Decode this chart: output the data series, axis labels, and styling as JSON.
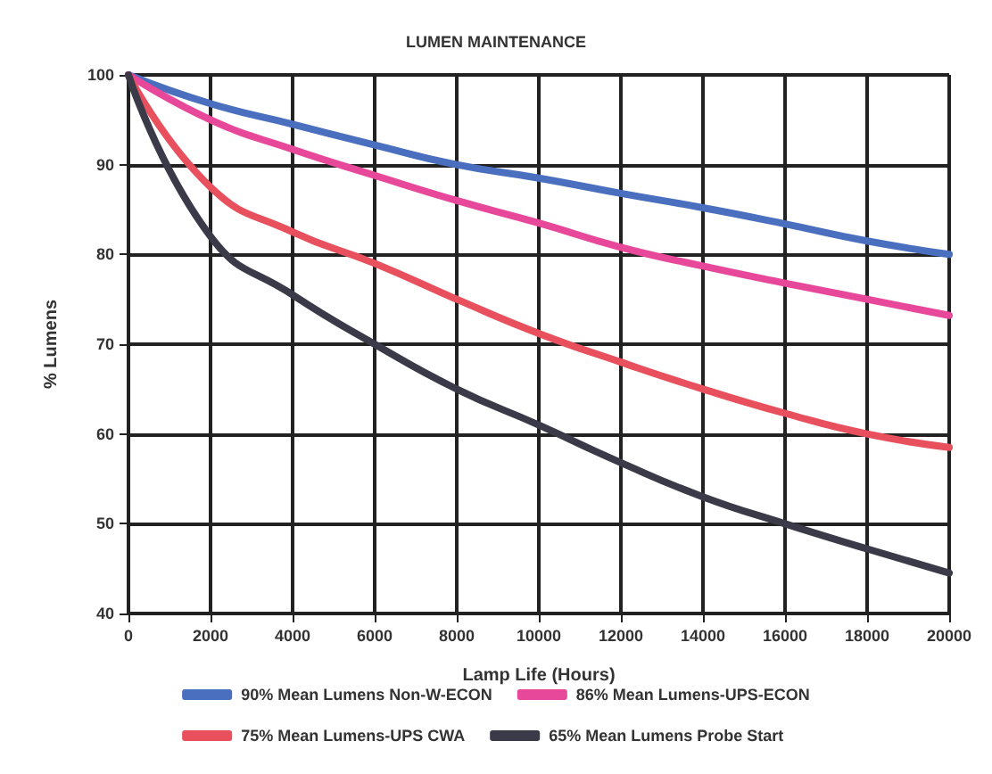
{
  "chart_data": {
    "type": "line",
    "title": "LUMEN MAINTENANCE",
    "xlabel": "Lamp Life (Hours)",
    "ylabel": "% Lumens",
    "x": [
      0,
      2000,
      4000,
      6000,
      8000,
      10000,
      12000,
      14000,
      16000,
      18000,
      20000
    ],
    "series": [
      {
        "name": "90% Mean Lumens Non-W-ECON",
        "color": "#4a6fbf",
        "values": [
          100,
          96.8,
          94.5,
          92.2,
          90,
          88.5,
          86.8,
          85.2,
          83.4,
          81.5,
          80
        ]
      },
      {
        "name": "86% Mean Lumens-UPS-ECON",
        "color": "#e8489a",
        "values": [
          100,
          95,
          91.7,
          88.8,
          86,
          83.5,
          80.8,
          78.7,
          76.8,
          75,
          73.2
        ]
      },
      {
        "name": "75% Mean Lumens-UPS CWA",
        "color": "#e8505e",
        "values": [
          100,
          87.5,
          82.5,
          79,
          75,
          71.2,
          68,
          65,
          62.3,
          60,
          58.5
        ]
      },
      {
        "name": "65% Mean Lumens Probe Start",
        "color": "#3a3a48",
        "values": [
          100,
          82,
          75.5,
          70,
          65,
          61,
          56.8,
          53,
          50,
          47.2,
          44.5
        ]
      }
    ],
    "xlim": [
      0,
      20000
    ],
    "xticks": [
      0,
      2000,
      4000,
      6000,
      8000,
      10000,
      12000,
      14000,
      16000,
      18000,
      20000
    ],
    "ylim": [
      40,
      100
    ],
    "yticks": [
      40,
      50,
      60,
      70,
      80,
      90,
      100
    ],
    "grid": true,
    "legend": "bottom",
    "marker": "none",
    "line_style": "solid"
  }
}
